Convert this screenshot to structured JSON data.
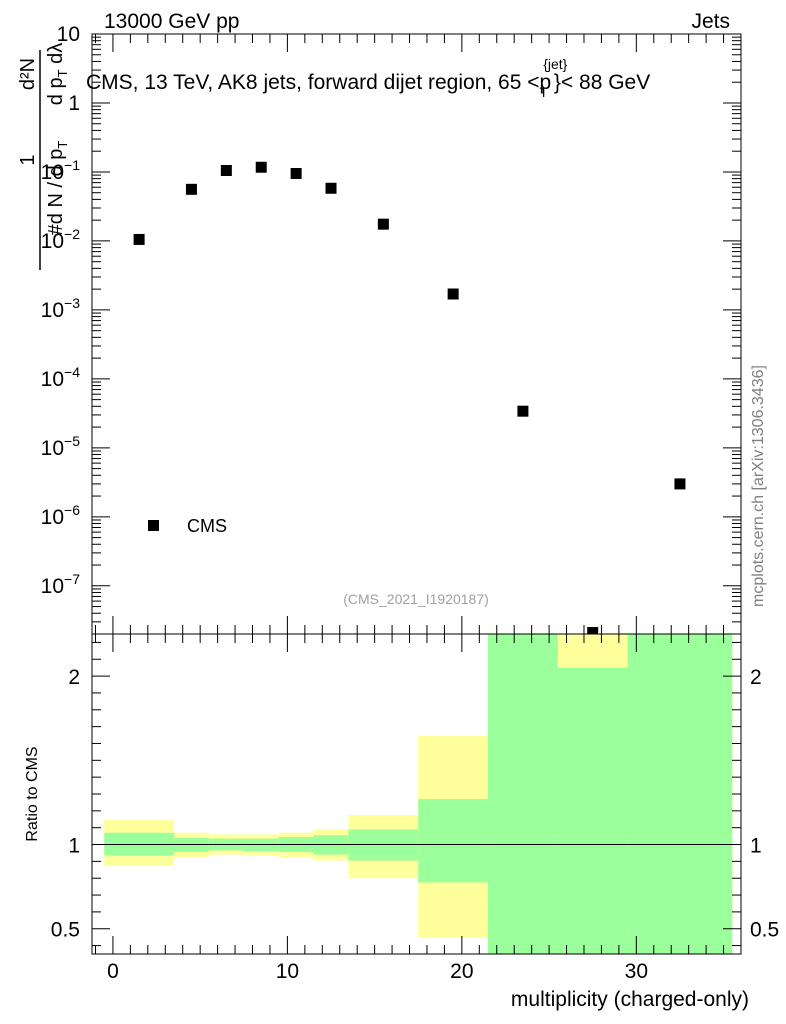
{
  "chart_data": [
    {
      "type": "scatter",
      "panel": "main",
      "header_left": "13000 GeV pp",
      "header_right": "Jets",
      "title": "CMS, 13 TeV, AK8 jets, forward dijet region, 65 <p",
      "title_sup": "{jet}",
      "title_sub": "T",
      "title_end": "}< 88 GeV",
      "ylabel": "1/(dN/dp_T) · d²N/(dp_T dλ)",
      "yscale": "log",
      "ylim": [
        2e-08,
        10
      ],
      "xlim": [
        -1.2,
        36
      ],
      "y_ticks": [
        {
          "value": 10,
          "label": "10"
        },
        {
          "value": 1,
          "label": "1"
        },
        {
          "value": 0.1,
          "label": "10",
          "exp": "−1"
        },
        {
          "value": 0.01,
          "label": "10",
          "exp": "−2"
        },
        {
          "value": 0.001,
          "label": "10",
          "exp": "−3"
        },
        {
          "value": 0.0001,
          "label": "10",
          "exp": "−4"
        },
        {
          "value": 1e-05,
          "label": "10",
          "exp": "−5"
        },
        {
          "value": 1e-06,
          "label": "10",
          "exp": "−6"
        },
        {
          "value": 1e-07,
          "label": "10",
          "exp": "−7"
        }
      ],
      "series": [
        {
          "name": "CMS",
          "marker": "square",
          "x": [
            1.5,
            4.5,
            6.5,
            8.5,
            10.5,
            12.5,
            15.5,
            19.5,
            23.5,
            27.5,
            32.5
          ],
          "y": [
            0.0105,
            0.056,
            0.105,
            0.117,
            0.095,
            0.058,
            0.0175,
            0.0017,
            3.4e-05,
            2.1e-08,
            3e-06
          ]
        }
      ],
      "legend": {
        "label": "CMS",
        "placement": "bottom-left"
      },
      "watermark": "(CMS_2021_I1920187)",
      "side_label": "mcplots.cern.ch [arXiv:1306.3436]"
    },
    {
      "type": "area",
      "panel": "ratio",
      "ylabel": "Ratio to CMS",
      "xlabel": "multiplicity (charged-only)",
      "xlim": [
        -1.2,
        36
      ],
      "ylim": [
        0.35,
        2.25
      ],
      "x_ticks": [
        {
          "value": 0,
          "label": "0"
        },
        {
          "value": 10,
          "label": "10"
        },
        {
          "value": 20,
          "label": "20"
        },
        {
          "value": 30,
          "label": "30"
        }
      ],
      "y_ticks": [
        {
          "value": 0.5,
          "label": "0.5"
        },
        {
          "value": 1,
          "label": "1"
        },
        {
          "value": 2,
          "label": "2"
        }
      ],
      "reference_line": 1,
      "bins": [
        {
          "x0": -0.5,
          "x1": 3.5,
          "green": [
            0.935,
            1.07
          ],
          "yellow": [
            0.875,
            1.145
          ]
        },
        {
          "x0": 3.5,
          "x1": 5.5,
          "green": [
            0.955,
            1.04
          ],
          "yellow": [
            0.925,
            1.07
          ]
        },
        {
          "x0": 5.5,
          "x1": 7.5,
          "green": [
            0.965,
            1.035
          ],
          "yellow": [
            0.94,
            1.06
          ]
        },
        {
          "x0": 7.5,
          "x1": 9.5,
          "green": [
            0.96,
            1.035
          ],
          "yellow": [
            0.935,
            1.06
          ]
        },
        {
          "x0": 9.5,
          "x1": 11.5,
          "green": [
            0.955,
            1.045
          ],
          "yellow": [
            0.925,
            1.07
          ]
        },
        {
          "x0": 11.5,
          "x1": 13.5,
          "green": [
            0.94,
            1.055
          ],
          "yellow": [
            0.905,
            1.09
          ]
        },
        {
          "x0": 13.5,
          "x1": 17.5,
          "green": [
            0.905,
            1.09
          ],
          "yellow": [
            0.8,
            1.175
          ]
        },
        {
          "x0": 17.5,
          "x1": 21.5,
          "green": [
            0.775,
            1.27
          ],
          "yellow": [
            0.445,
            1.645
          ]
        },
        {
          "x0": 21.5,
          "x1": 25.5,
          "green": [
            0.35,
            2.25
          ],
          "yellow": [
            0.35,
            2.25
          ]
        },
        {
          "x0": 25.5,
          "x1": 29.5,
          "green": [
            0.35,
            2.05
          ],
          "yellow": [
            0.35,
            2.25
          ]
        },
        {
          "x0": 29.5,
          "x1": 35.5,
          "green": [
            0.35,
            2.25
          ],
          "yellow": [
            0.35,
            2.25
          ]
        }
      ],
      "colors": {
        "green": "#9bff9b",
        "yellow": "#ffff9b"
      }
    }
  ]
}
